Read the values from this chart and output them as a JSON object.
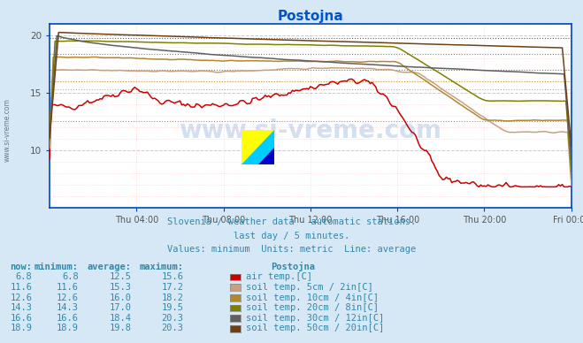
{
  "title": "Postojna",
  "subtitle1": "Slovenia / weather data - automatic stations.",
  "subtitle2": "last day / 5 minutes.",
  "subtitle3": "Values: minimum  Units: metric  Line: average",
  "bg_color": "#d6e8f5",
  "plot_bg_color": "#ffffff",
  "title_color": "#0055cc",
  "text_color": "#3388aa",
  "watermark": "www.si-vreme.com",
  "x_labels": [
    "Thu 04:00",
    "Thu 08:00",
    "Thu 12:00",
    "Thu 16:00",
    "Thu 20:00",
    "Fri 00:00"
  ],
  "x_ticks_frac": [
    0.1667,
    0.3333,
    0.5,
    0.6667,
    0.8333,
    1.0
  ],
  "n_points": 289,
  "ylim": [
    5.0,
    21.0
  ],
  "yticks": [
    10,
    15,
    20
  ],
  "series": [
    {
      "label": "air temp.[C]",
      "color": "#cc0000",
      "avg": 12.5,
      "now": 6.8,
      "min": 6.8,
      "max": 15.6
    },
    {
      "label": "soil temp. 5cm / 2in[C]",
      "color": "#c8a080",
      "avg": 15.3,
      "now": 11.6,
      "min": 11.6,
      "max": 17.2
    },
    {
      "label": "soil temp. 10cm / 4in[C]",
      "color": "#b08830",
      "avg": 16.0,
      "now": 12.6,
      "min": 12.6,
      "max": 18.2
    },
    {
      "label": "soil temp. 20cm / 8in[C]",
      "color": "#808000",
      "avg": 17.0,
      "now": 14.3,
      "min": 14.3,
      "max": 19.5
    },
    {
      "label": "soil temp. 30cm / 12in[C]",
      "color": "#606060",
      "avg": 18.4,
      "now": 16.6,
      "min": 16.6,
      "max": 20.3
    },
    {
      "label": "soil temp. 50cm / 20in[C]",
      "color": "#704010",
      "avg": 19.8,
      "now": 18.9,
      "min": 18.9,
      "max": 20.3
    }
  ],
  "table_headers": [
    "now:",
    "minimum:",
    "average:",
    "maximum:",
    "Postojna"
  ],
  "table_data": [
    [
      "6.8",
      "6.8",
      "12.5",
      "15.6"
    ],
    [
      "11.6",
      "11.6",
      "15.3",
      "17.2"
    ],
    [
      "12.6",
      "12.6",
      "16.0",
      "18.2"
    ],
    [
      "14.3",
      "14.3",
      "17.0",
      "19.5"
    ],
    [
      "16.6",
      "16.6",
      "18.4",
      "20.3"
    ],
    [
      "18.9",
      "18.9",
      "19.8",
      "20.3"
    ]
  ]
}
